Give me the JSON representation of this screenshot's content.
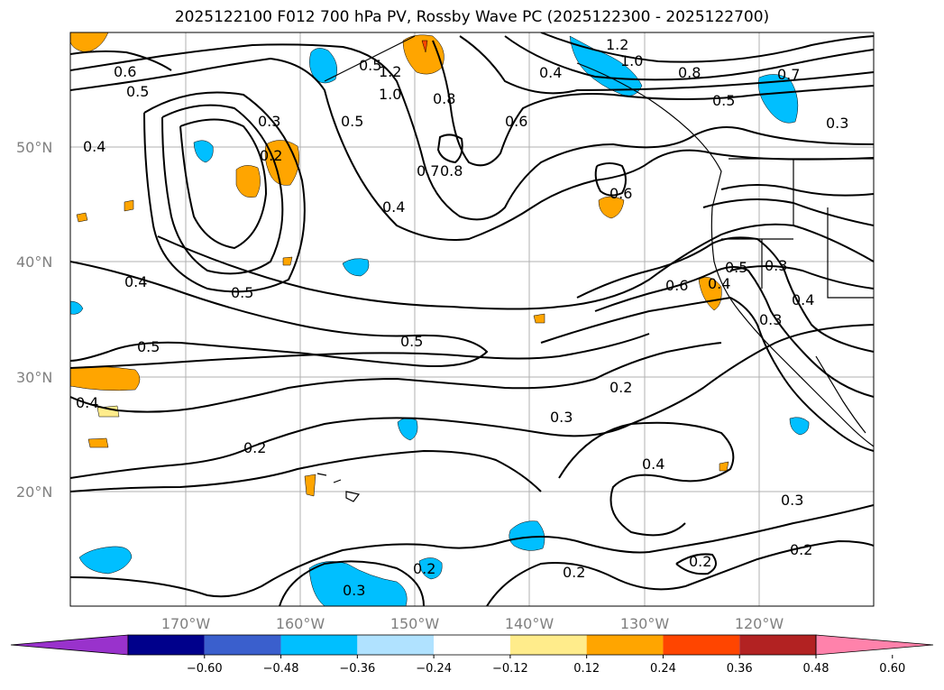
{
  "figure": {
    "title": "2025122100 F012 700 hPa PV, Rossby Wave PC (2025122300 - 2025122700)"
  },
  "axes": {
    "lat_labels": [
      "50°N",
      "40°N",
      "30°N",
      "20°N"
    ],
    "lon_labels": [
      "170°W",
      "160°W",
      "150°W",
      "140°W",
      "130°W",
      "120°W"
    ]
  },
  "contour_labels": [
    "0.6",
    "0.5",
    "0.4",
    "0.3",
    "0.2",
    "0.5",
    "1.2",
    "1.0",
    "0.8",
    "0.5",
    "0.4",
    "0.7",
    "0.8",
    "0.6",
    "0.4",
    "1.2",
    "1.0",
    "0.8",
    "0.5",
    "0.7",
    "0.3",
    "0.6",
    "0.4",
    "0.5",
    "0.5",
    "0.5",
    "0.4",
    "0.6",
    "0.4",
    "0.5",
    "0.3",
    "0.4",
    "0.3",
    "0.2",
    "0.3",
    "0.4",
    "0.2",
    "0.3",
    "0.2",
    "0.2",
    "0.2",
    "0.3",
    "0.2"
  ],
  "colorbar": {
    "ticks": [
      "−0.60",
      "−0.48",
      "−0.36",
      "−0.24",
      "−0.12",
      "0.12",
      "0.24",
      "0.36",
      "0.48",
      "0.60"
    ],
    "colors": [
      "#9932cc",
      "#00008b",
      "#3a5fcd",
      "#00bfff",
      "#b0e2ff",
      "#ffffff",
      "#ffec8b",
      "#ffa500",
      "#ff4500",
      "#b22222",
      "#ff82ab"
    ]
  },
  "colors": {
    "shade_light_blue": "#b0e2ff",
    "shade_blue": "#00bfff",
    "shade_light_yellow": "#ffec8b",
    "shade_orange": "#ffa500",
    "shade_red": "#ff4500",
    "grid": "#b0b0b0",
    "contour": "#000000"
  }
}
